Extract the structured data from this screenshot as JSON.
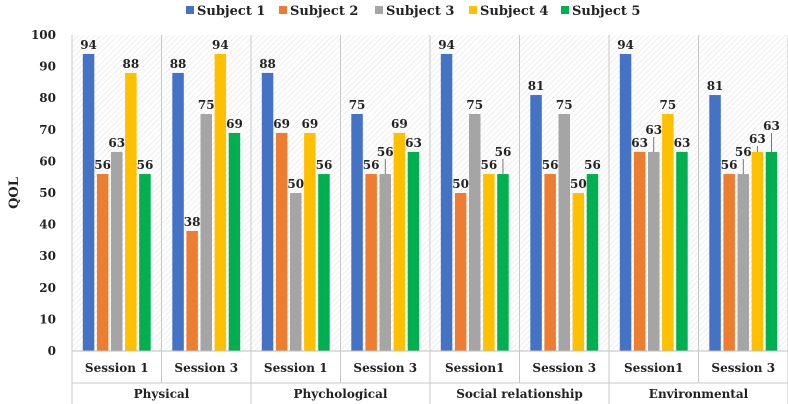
{
  "chart_data": {
    "type": "bar",
    "title": "",
    "xlabel": "",
    "ylabel": "QOL",
    "ylim": [
      0,
      100
    ],
    "yticks": [
      0,
      10,
      20,
      30,
      40,
      50,
      60,
      70,
      80,
      90,
      100
    ],
    "grid": false,
    "legend_position": "top",
    "groups": [
      {
        "label": "Physical",
        "sessions": [
          "Session 1",
          "Session 3"
        ]
      },
      {
        "label": "Phychological",
        "sessions": [
          "Session 1",
          "Session 3"
        ]
      },
      {
        "label": "Social relationship",
        "sessions": [
          "Session1",
          "Session 3"
        ]
      },
      {
        "label": "Environmental",
        "sessions": [
          "Session1",
          "Session 3"
        ]
      }
    ],
    "categories": [
      "Session 1",
      "Session 3",
      "Session 1",
      "Session 3",
      "Session1",
      "Session 3",
      "Session1",
      "Session 3"
    ],
    "series": [
      {
        "name": "Subject 1",
        "color": "#4472C4",
        "values": [
          94,
          88,
          88,
          75,
          94,
          81,
          94,
          81
        ]
      },
      {
        "name": "Subject 2",
        "color": "#ED7D31",
        "values": [
          56,
          38,
          69,
          56,
          50,
          56,
          63,
          56
        ]
      },
      {
        "name": "Subject 3",
        "color": "#A5A5A5",
        "values": [
          63,
          75,
          50,
          56,
          75,
          75,
          63,
          56
        ]
      },
      {
        "name": "Subject 4",
        "color": "#FFC000",
        "values": [
          88,
          94,
          69,
          69,
          56,
          50,
          75,
          63
        ]
      },
      {
        "name": "Subject 5",
        "color": "#00B050",
        "values": [
          56,
          69,
          56,
          63,
          56,
          56,
          63,
          63
        ]
      }
    ]
  }
}
